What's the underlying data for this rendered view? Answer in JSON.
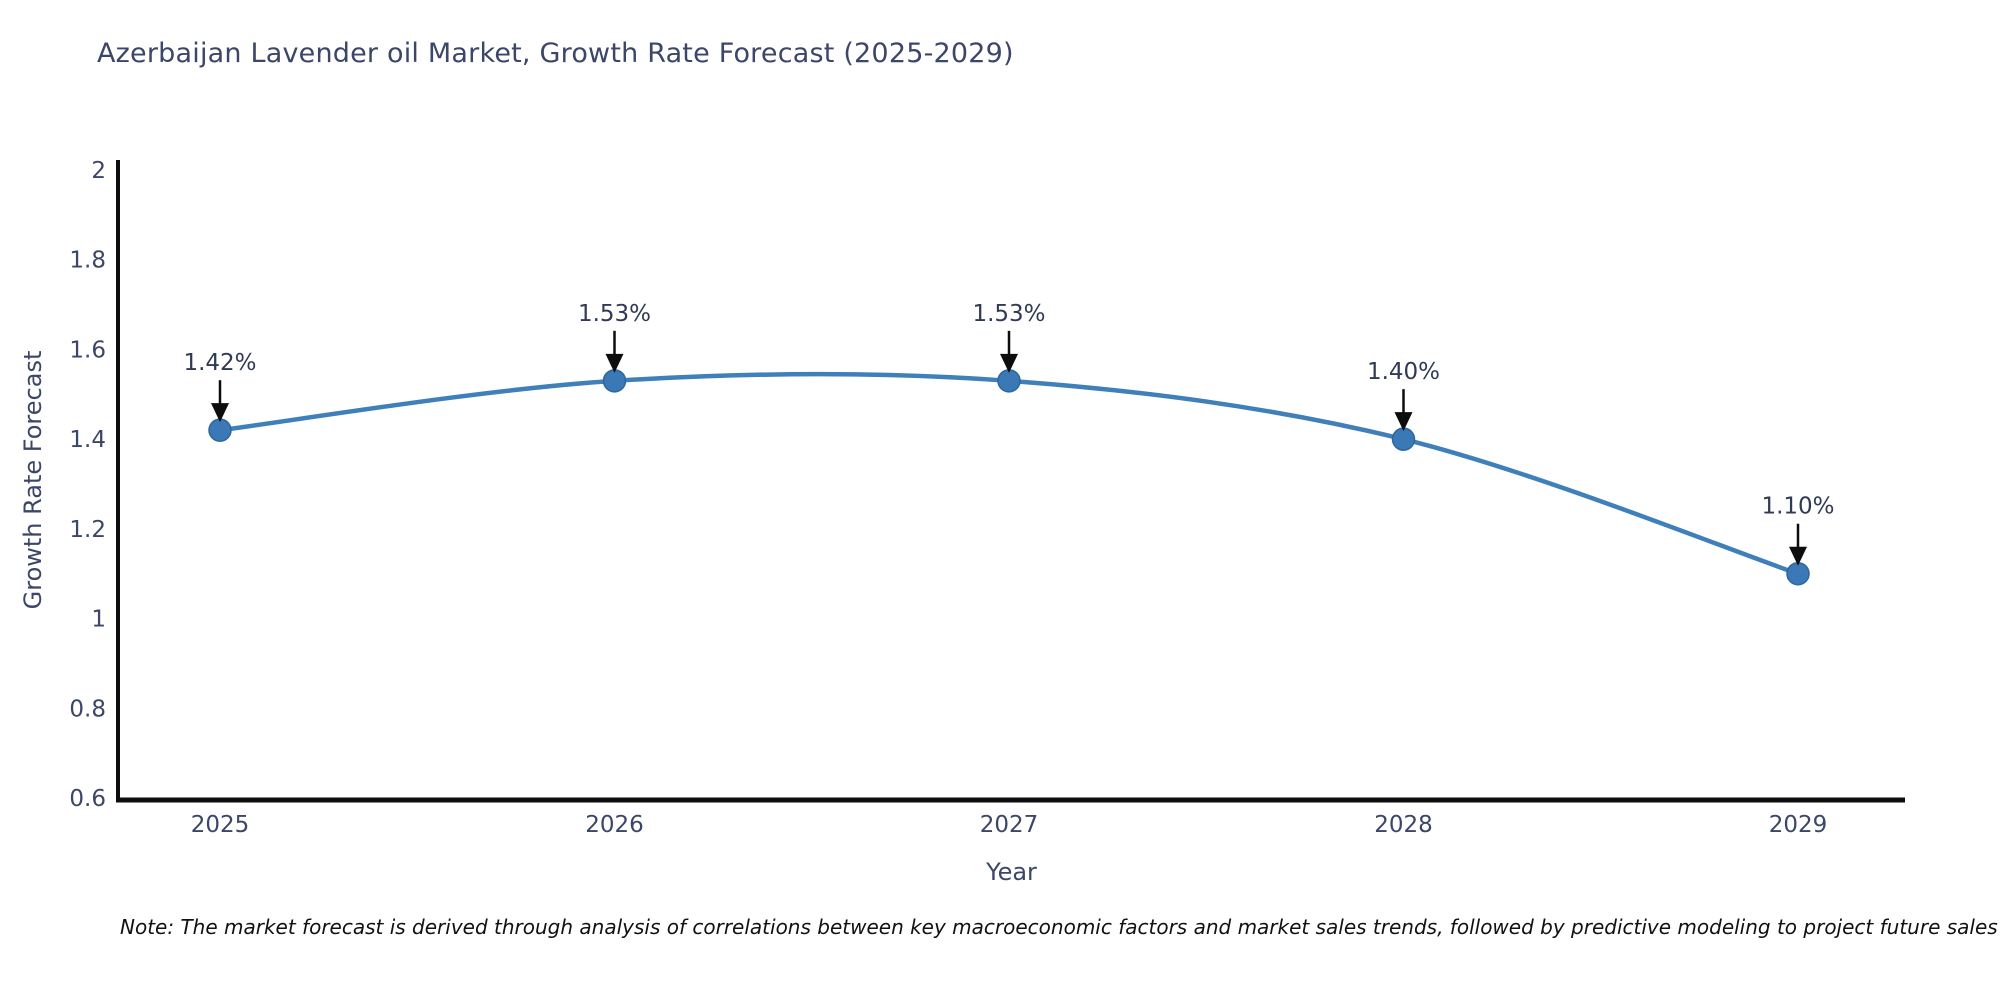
{
  "title": "Azerbaijan Lavender oil Market, Growth Rate Forecast (2025-2029)",
  "note": "Note: The market forecast is derived through analysis of correlations between key macroeconomic factors and market sales trends, followed by predictive modeling to project future sales",
  "chart_data": {
    "type": "line",
    "title": "Azerbaijan Lavender oil Market, Growth Rate Forecast (2025-2029)",
    "xlabel": "Year",
    "ylabel": "Growth Rate Forecast",
    "x": [
      2025,
      2026,
      2027,
      2028,
      2029
    ],
    "values": [
      1.42,
      1.53,
      1.53,
      1.4,
      1.1
    ],
    "point_labels": [
      "1.42%",
      "1.53%",
      "1.53%",
      "1.40%",
      "1.10%"
    ],
    "xtick_labels": [
      "2025",
      "2026",
      "2027",
      "2028",
      "2029"
    ],
    "yticks": [
      0.6,
      0.8,
      1,
      1.2,
      1.4,
      1.6,
      1.8,
      2
    ],
    "ytick_labels": [
      "0.6",
      "0.8",
      "1",
      "1.2",
      "1.4",
      "1.6",
      "1.8",
      "2"
    ],
    "ylim": [
      0.6,
      2
    ],
    "line_shape": "spline",
    "grid": false,
    "legend": false,
    "colors": {
      "line": "#3f7fba",
      "marker_fill": "#3a79b6",
      "marker_stroke": "#2f669e",
      "axis_line": "#0d0d0d",
      "tick_text": "#3b4668",
      "annotation_text": "#2f3a55",
      "annotation_arrow": "#0d0d0d"
    }
  }
}
